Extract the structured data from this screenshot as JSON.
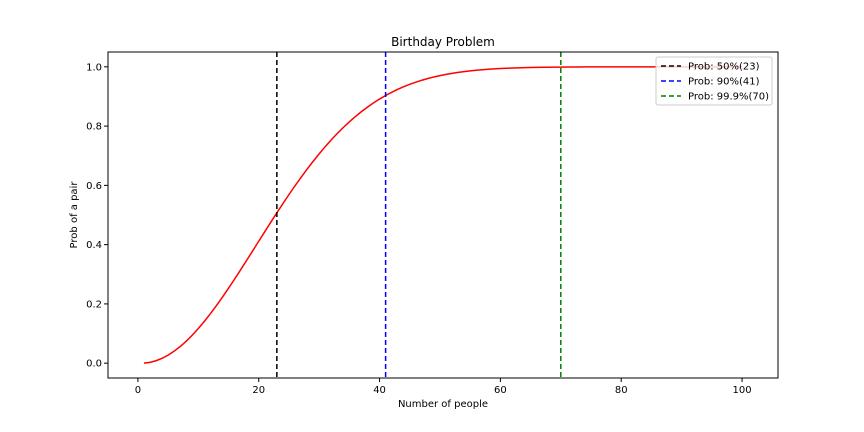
{
  "chart_data": {
    "type": "line",
    "title": "Birthday Problem",
    "xlabel": "Number of people",
    "ylabel": "Prob of a pair",
    "xlim": [
      -4.95,
      105.95
    ],
    "ylim": [
      -0.05,
      1.05
    ],
    "xticks": [
      0,
      20,
      40,
      60,
      80,
      100
    ],
    "yticks": [
      0.0,
      0.2,
      0.4,
      0.6,
      0.8,
      1.0
    ],
    "xtick_labels": [
      "0",
      "20",
      "40",
      "60",
      "80",
      "100"
    ],
    "ytick_labels": [
      "0.0",
      "0.2",
      "0.4",
      "0.6",
      "0.8",
      "1.0"
    ],
    "grid": false,
    "legend_position": "top-right",
    "series": [
      {
        "style": "solid",
        "color": "#ff0000",
        "x_start": 1,
        "x_end": 100,
        "formula": "1 - prod_{i=0}^{n-1} (365 - i) / 365"
      }
    ],
    "vlines": [
      {
        "name": "Prob: 50%(23)",
        "x": 23,
        "color": "#000000",
        "style": "dashed"
      },
      {
        "name": "Prob: 90%(41)",
        "x": 41,
        "color": "#0000ff",
        "style": "dashed"
      },
      {
        "name": "Prob: 99.9%(70)",
        "x": 70,
        "color": "#008000",
        "style": "dashed"
      }
    ]
  }
}
